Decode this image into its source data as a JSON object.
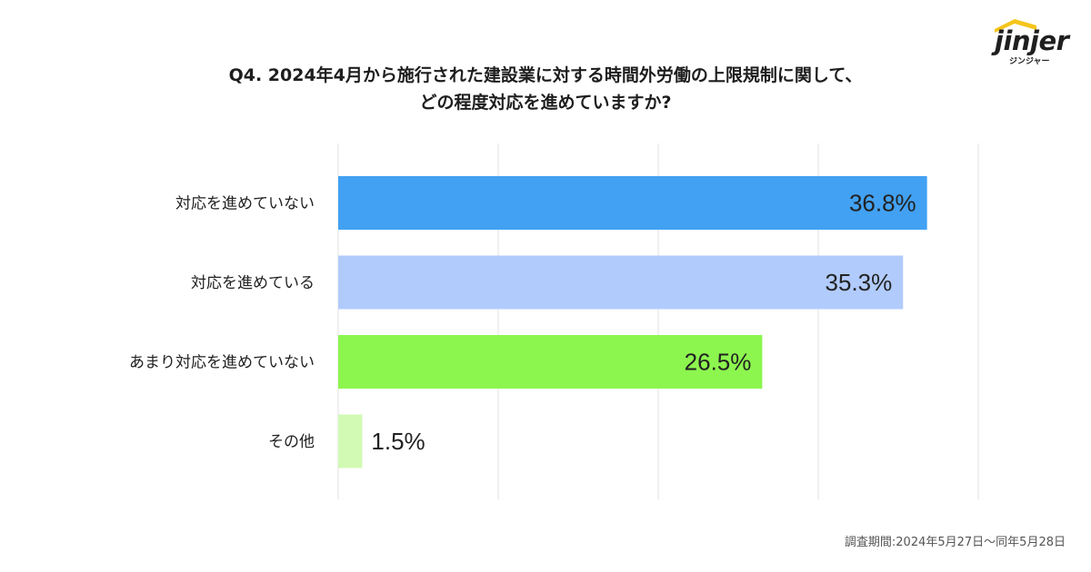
{
  "brand": {
    "logo_text": "jinjer",
    "logo_sub": "ジンジャー",
    "roof_color": "#f5c51a"
  },
  "title_line1": "Q4. 2024年4月から施行された建設業に対する時間外労働の上限規制に関して、",
  "title_line2": "どの程度対応を進めていますか?",
  "footnote": "調査期間:2024年5月27日〜同年5月28日",
  "chart_data": {
    "type": "bar",
    "orientation": "horizontal",
    "categories": [
      "対応を進めていない",
      "対応を進めている",
      "あまり対応を進めていない",
      "その他"
    ],
    "values": [
      36.8,
      35.3,
      26.5,
      1.5
    ],
    "value_labels": [
      "36.8%",
      "35.3%",
      "26.5%",
      "1.5%"
    ],
    "colors": [
      "#42a1f3",
      "#b1cbfc",
      "#8cf64f",
      "#d2fab4"
    ],
    "xlim": [
      0,
      40
    ],
    "grid": true,
    "legend": "none"
  }
}
